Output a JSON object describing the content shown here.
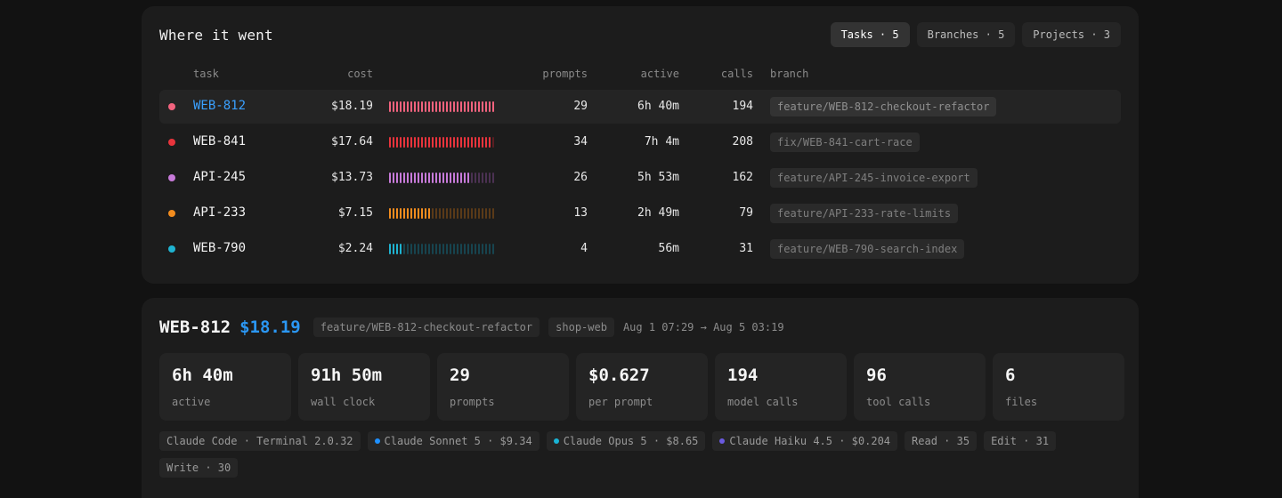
{
  "where": {
    "title": "Where it went",
    "tabs": [
      {
        "label": "Tasks · 5",
        "active": true
      },
      {
        "label": "Branches · 5",
        "active": false
      },
      {
        "label": "Projects · 3",
        "active": false
      }
    ],
    "columns": {
      "task": "task",
      "cost": "cost",
      "prompts": "prompts",
      "active": "active",
      "calls": "calls",
      "branch": "branch"
    },
    "rows": [
      {
        "task": "WEB-812",
        "cost": "$18.19",
        "share": 1.0,
        "prompts": "29",
        "active": "6h 40m",
        "calls": "194",
        "branch": "feature/WEB-812-checkout-refactor",
        "color": "#f2637e",
        "dim": "#5a2a34",
        "selected": true
      },
      {
        "task": "WEB-841",
        "cost": "$17.64",
        "share": 0.97,
        "prompts": "34",
        "active": "7h 4m",
        "calls": "208",
        "branch": "fix/WEB-841-cart-race",
        "color": "#e8343c",
        "dim": "#5a1e22",
        "selected": false
      },
      {
        "task": "API-245",
        "cost": "$13.73",
        "share": 0.75,
        "prompts": "26",
        "active": "5h 53m",
        "calls": "162",
        "branch": "feature/API-245-invoice-export",
        "color": "#c77ad9",
        "dim": "#4b3152",
        "selected": false
      },
      {
        "task": "API-233",
        "cost": "$7.15",
        "share": 0.39,
        "prompts": "13",
        "active": "2h 49m",
        "calls": "79",
        "branch": "feature/API-233-rate-limits",
        "color": "#f28c1e",
        "dim": "#5a3a18",
        "selected": false
      },
      {
        "task": "WEB-790",
        "cost": "$2.24",
        "share": 0.12,
        "prompts": "4",
        "active": "56m",
        "calls": "31",
        "branch": "feature/WEB-790-search-index",
        "color": "#1fb3d1",
        "dim": "#17444f",
        "selected": false
      }
    ]
  },
  "detail": {
    "title": "WEB-812",
    "cost": "$18.19",
    "branch": "feature/WEB-812-checkout-refactor",
    "project": "shop-web",
    "range": "Aug 1 07:29 → Aug 5 03:19",
    "stats": [
      {
        "value": "6h 40m",
        "label": "active"
      },
      {
        "value": "91h 50m",
        "label": "wall clock"
      },
      {
        "value": "29",
        "label": "prompts"
      },
      {
        "value": "$0.627",
        "label": "per prompt"
      },
      {
        "value": "194",
        "label": "model calls"
      },
      {
        "value": "96",
        "label": "tool calls"
      },
      {
        "value": "6",
        "label": "files"
      }
    ],
    "chips": [
      {
        "label": "Claude Code · Terminal 2.0.32",
        "dot": null
      },
      {
        "label": "Claude Sonnet 5 · $9.34",
        "dot": "#1e90ff"
      },
      {
        "label": "Claude Opus 5 · $8.65",
        "dot": "#19b4d6"
      },
      {
        "label": "Claude Haiku 4.5 · $0.204",
        "dot": "#6a5ae0"
      },
      {
        "label": "Read · 35",
        "dot": null
      },
      {
        "label": "Edit · 31",
        "dot": null
      },
      {
        "label": "Write · 30",
        "dot": null
      }
    ]
  }
}
